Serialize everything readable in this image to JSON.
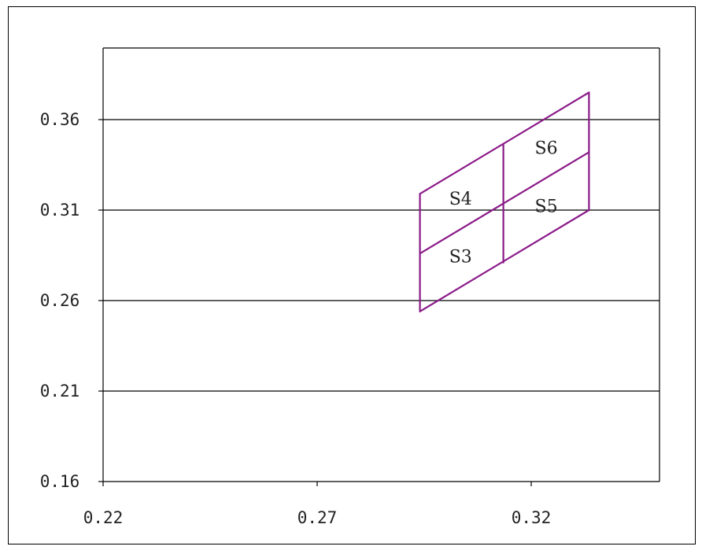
{
  "chart_data": {
    "type": "line",
    "title": "",
    "xlabel": "",
    "ylabel": "",
    "xlim": [
      0.22,
      0.35
    ],
    "ylim": [
      0.16,
      0.4
    ],
    "x_ticks": [
      "0.22",
      "0.27",
      "0.32"
    ],
    "x_tick_values": [
      0.22,
      0.27,
      0.32
    ],
    "y_ticks": [
      "0.16",
      "0.21",
      "0.26",
      "0.31",
      "0.36"
    ],
    "y_tick_values": [
      0.16,
      0.21,
      0.26,
      0.31,
      0.36
    ],
    "grid": "horizontal",
    "line_color": "#8b1a89",
    "series": [
      {
        "x": [
          0.294,
          0.294
        ],
        "y": [
          0.254,
          0.319
        ]
      },
      {
        "x": [
          0.3135,
          0.3135
        ],
        "y": [
          0.281,
          0.3465
        ]
      },
      {
        "x": [
          0.3335,
          0.3335
        ],
        "y": [
          0.31,
          0.375
        ]
      },
      {
        "x": [
          0.294,
          0.3335
        ],
        "y": [
          0.254,
          0.31
        ]
      },
      {
        "x": [
          0.294,
          0.3335
        ],
        "y": [
          0.286,
          0.342
        ]
      },
      {
        "x": [
          0.294,
          0.3335
        ],
        "y": [
          0.319,
          0.375
        ]
      }
    ],
    "annotations": [
      {
        "text": "S3",
        "x": 0.3035,
        "y": 0.2845
      },
      {
        "text": "S4",
        "x": 0.3035,
        "y": 0.3165
      },
      {
        "text": "S5",
        "x": 0.3235,
        "y": 0.3125
      },
      {
        "text": "S6",
        "x": 0.3235,
        "y": 0.3445
      }
    ]
  }
}
